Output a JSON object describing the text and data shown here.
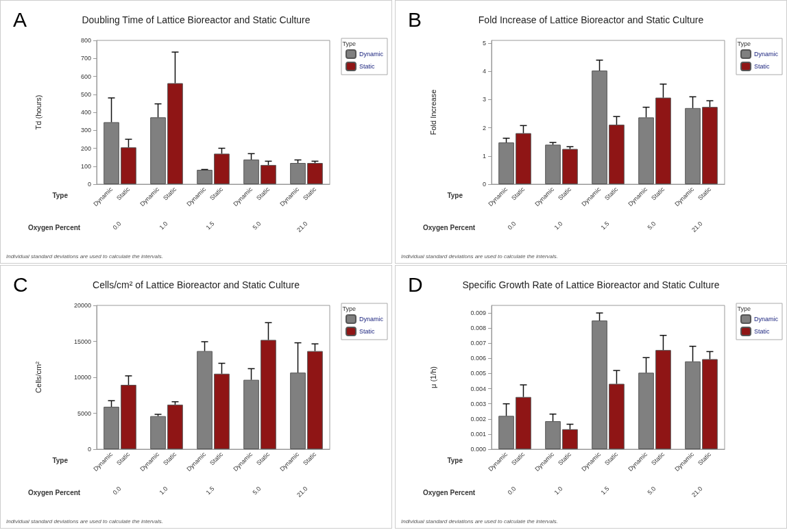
{
  "chart_data": [
    {
      "type": "bar",
      "title": "Doubling Time of Lattice Bioreactor and Static Culture",
      "ylabel": "Td (hours)",
      "xlabel": "Oxygen Percent",
      "legend_title": "Type",
      "legend": "top right",
      "annotations": [
        "A",
        "Individual standard deviations are used to calculate the intervals."
      ],
      "categories": [
        "0.0",
        "1.0",
        "1.5",
        "5.0",
        "21.0"
      ],
      "ylim": [
        0,
        800
      ],
      "yticks": [
        0,
        100,
        200,
        300,
        400,
        500,
        600,
        700,
        800
      ],
      "series": [
        {
          "name": "Dynamic",
          "color": "#808080",
          "values": [
            345,
            372,
            80,
            137,
            118
          ],
          "errors": [
            [
              345,
              480
            ],
            [
              372,
              447
            ],
            [
              80,
              82
            ],
            [
              137,
              170
            ],
            [
              118,
              135
            ]
          ]
        },
        {
          "name": "Static",
          "color": "#8f1515",
          "values": [
            205,
            562,
            170,
            107,
            118
          ],
          "errors": [
            [
              205,
              250
            ],
            [
              562,
              735
            ],
            [
              170,
              200
            ],
            [
              107,
              128
            ],
            [
              118,
              128
            ]
          ]
        }
      ]
    },
    {
      "type": "bar",
      "title": "Fold Increase of Lattice Bioreactor and Static Culture",
      "ylabel": "Fold Increase",
      "xlabel": "Oxygen Percent",
      "legend_title": "Type",
      "legend": "top right",
      "annotations": [
        "B",
        "Individual standard deviations are used to calculate the intervals."
      ],
      "categories": [
        "0.0",
        "1.0",
        "1.5",
        "5.0",
        "21.0"
      ],
      "ylim": [
        0,
        5.1
      ],
      "yticks": [
        0,
        1,
        2,
        3,
        4,
        5
      ],
      "series": [
        {
          "name": "Dynamic",
          "color": "#808080",
          "values": [
            1.48,
            1.4,
            4.03,
            2.37,
            2.7
          ],
          "errors": [
            [
              1.48,
              1.63
            ],
            [
              1.4,
              1.48
            ],
            [
              4.03,
              4.4
            ],
            [
              2.37,
              2.73
            ],
            [
              2.7,
              3.1
            ]
          ]
        },
        {
          "name": "Static",
          "color": "#8f1515",
          "values": [
            1.81,
            1.25,
            2.11,
            3.07,
            2.74
          ],
          "errors": [
            [
              1.81,
              2.08
            ],
            [
              1.25,
              1.33
            ],
            [
              2.11,
              2.4
            ],
            [
              3.07,
              3.55
            ],
            [
              2.74,
              2.96
            ]
          ]
        }
      ]
    },
    {
      "type": "bar",
      "title": "Cells/cm² of Lattice Bioreactor and Static Culture",
      "ylabel": "Cells/cm²",
      "xlabel": "Oxygen Percent",
      "legend_title": "Type",
      "legend": "top right",
      "annotations": [
        "C",
        "Individual standard deviations are used to calculate the intervals."
      ],
      "categories": [
        "0.0",
        "1.0",
        "1.5",
        "5.0",
        "21.0"
      ],
      "ylim": [
        0,
        20000
      ],
      "yticks": [
        0,
        5000,
        10000,
        15000,
        20000
      ],
      "series": [
        {
          "name": "Dynamic",
          "color": "#808080",
          "values": [
            5900,
            4600,
            13650,
            9650,
            10650
          ],
          "errors": [
            [
              5900,
              6750
            ],
            [
              4600,
              4850
            ],
            [
              13650,
              14950
            ],
            [
              9650,
              11200
            ],
            [
              10650,
              14800
            ]
          ]
        },
        {
          "name": "Static",
          "color": "#8f1515",
          "values": [
            8950,
            6200,
            10500,
            15200,
            13650
          ],
          "errors": [
            [
              8950,
              10200
            ],
            [
              6200,
              6600
            ],
            [
              10500,
              11950
            ],
            [
              15200,
              17600
            ],
            [
              13650,
              14650
            ]
          ]
        }
      ]
    },
    {
      "type": "bar",
      "title": "Specific Growth Rate of Lattice Bioreactor and Static Culture",
      "ylabel": "μ (1/h)",
      "xlabel": "Oxygen Percent",
      "legend_title": "Type",
      "legend": "top right",
      "annotations": [
        "D",
        "Individual standard deviations are used to calculate the intervals."
      ],
      "categories": [
        "0.0",
        "1.0",
        "1.5",
        "5.0",
        "21.0"
      ],
      "ylim": [
        0,
        0.0095
      ],
      "yticks": [
        {
          "value": 0,
          "label": "0.000"
        },
        {
          "value": 0.001,
          "label": "0.001"
        },
        {
          "value": 0.002,
          "label": "0.002"
        },
        {
          "value": 0.003,
          "label": "0.003"
        },
        {
          "value": 0.004,
          "label": "0.004"
        },
        {
          "value": 0.005,
          "label": "0.005"
        },
        {
          "value": 0.006,
          "label": "0.006"
        },
        {
          "value": 0.007,
          "label": "0.007"
        },
        {
          "value": 0.008,
          "label": "0.008"
        },
        {
          "value": 0.009,
          "label": "0.009"
        }
      ],
      "series": [
        {
          "name": "Dynamic",
          "color": "#808080",
          "values": [
            0.0022,
            0.00185,
            0.0085,
            0.00505,
            0.0058
          ],
          "errors": [
            [
              0.0022,
              0.003
            ],
            [
              0.00185,
              0.00232
            ],
            [
              0.0085,
              0.009
            ],
            [
              0.00505,
              0.00605
            ],
            [
              0.0058,
              0.0068
            ]
          ]
        },
        {
          "name": "Static",
          "color": "#8f1515",
          "values": [
            0.00345,
            0.00132,
            0.00432,
            0.00655,
            0.00595
          ],
          "errors": [
            [
              0.00345,
              0.00425
            ],
            [
              0.00132,
              0.00165
            ],
            [
              0.00432,
              0.0052
            ],
            [
              0.00655,
              0.00752
            ],
            [
              0.00595,
              0.00645
            ]
          ]
        }
      ]
    }
  ]
}
